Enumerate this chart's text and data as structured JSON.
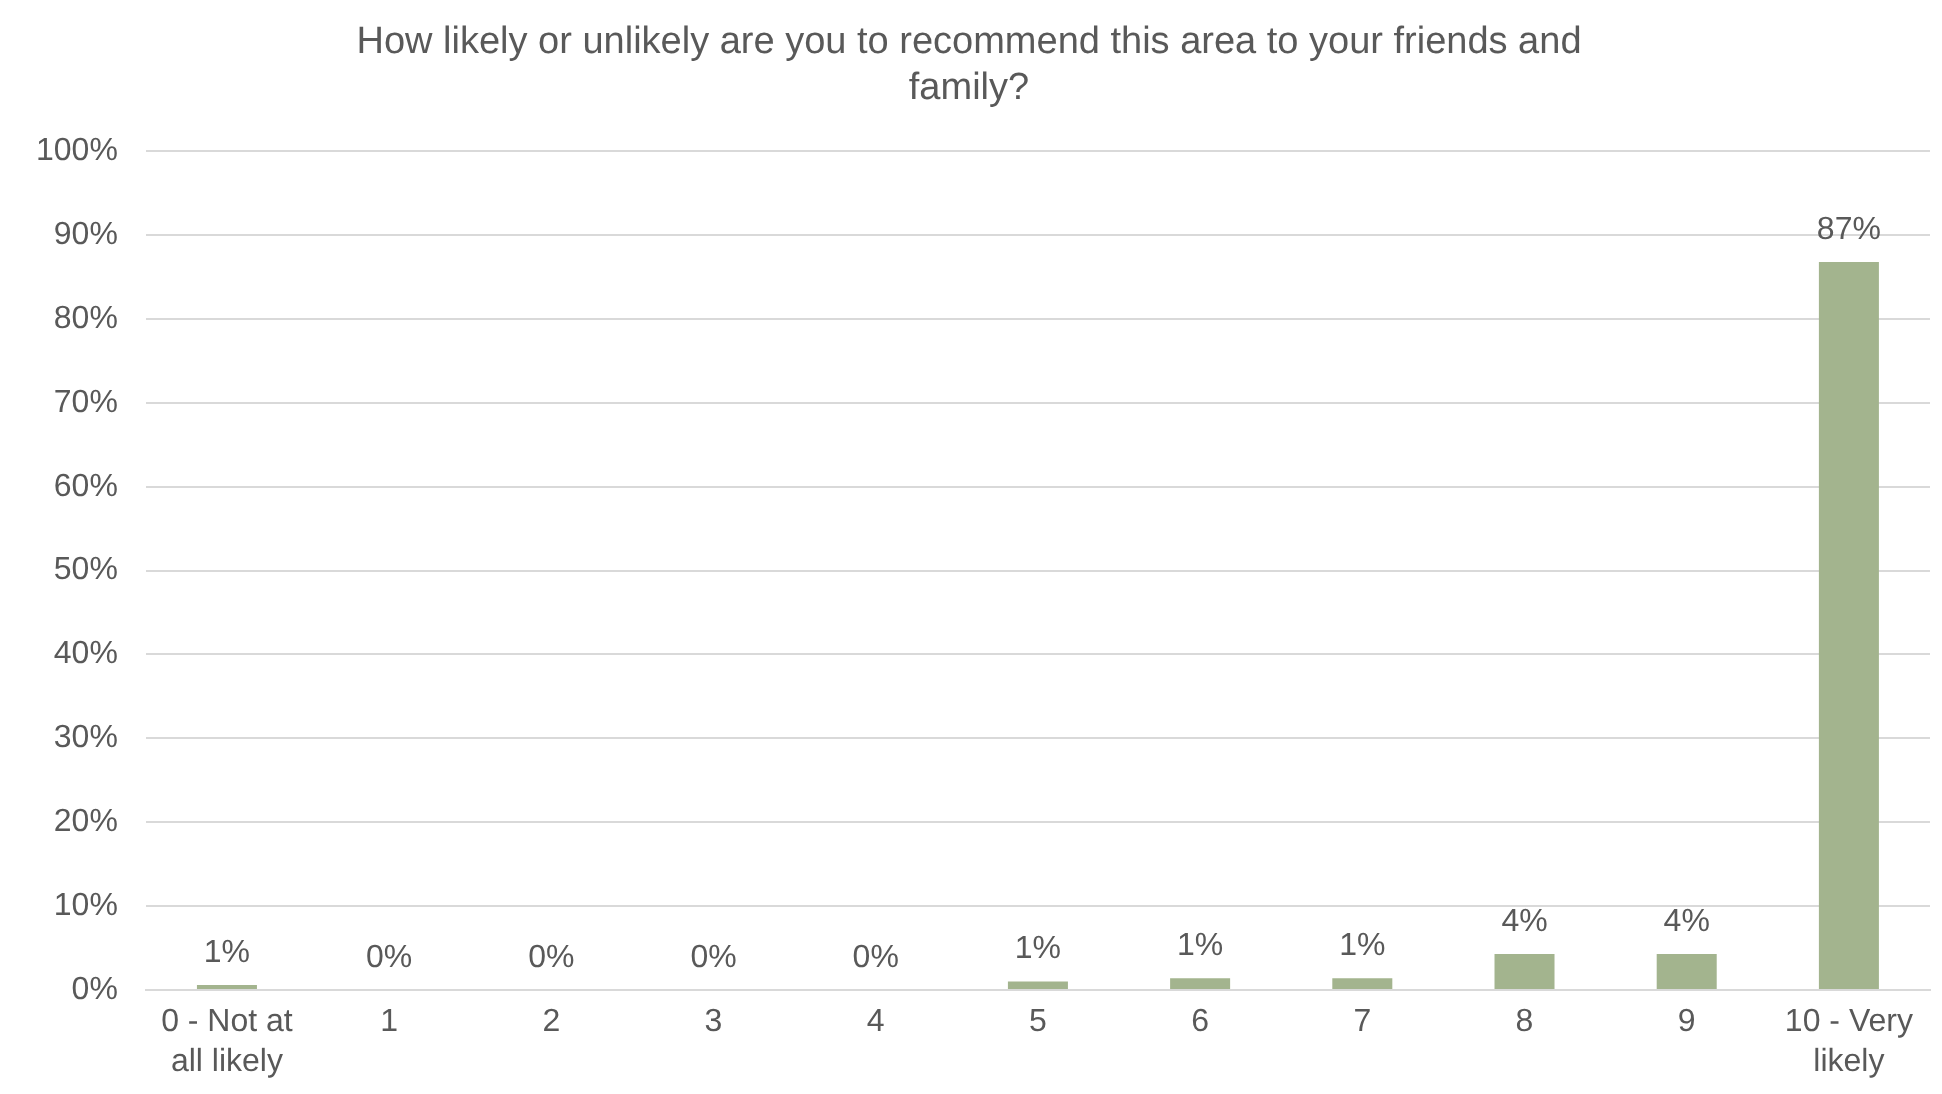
{
  "chart_data": {
    "type": "bar",
    "title": "How likely or unlikely are you to recommend this area to your friends and family?",
    "categories": [
      "0 - Not at all likely",
      "1",
      "2",
      "3",
      "4",
      "5",
      "6",
      "7",
      "8",
      "9",
      "10 - Very likely"
    ],
    "values": [
      0.6,
      0,
      0,
      0,
      0,
      1,
      1.4,
      1.4,
      4.3,
      4.3,
      86.8
    ],
    "value_labels": [
      "1%",
      "0%",
      "0%",
      "0%",
      "0%",
      "1%",
      "1%",
      "1%",
      "4%",
      "4%",
      "87%"
    ],
    "color": "#a3b48e",
    "ylim": [
      0,
      100
    ],
    "yticks": [
      {
        "value": 0,
        "label": "0%"
      },
      {
        "value": 10,
        "label": "10%"
      },
      {
        "value": 20,
        "label": "20%"
      },
      {
        "value": 30,
        "label": "30%"
      },
      {
        "value": 40,
        "label": "40%"
      },
      {
        "value": 50,
        "label": "50%"
      },
      {
        "value": 60,
        "label": "60%"
      },
      {
        "value": 70,
        "label": "70%"
      },
      {
        "value": 80,
        "label": "80%"
      },
      {
        "value": 90,
        "label": "90%"
      },
      {
        "value": 100,
        "label": "100%"
      }
    ],
    "grid": "y",
    "legend": false
  }
}
